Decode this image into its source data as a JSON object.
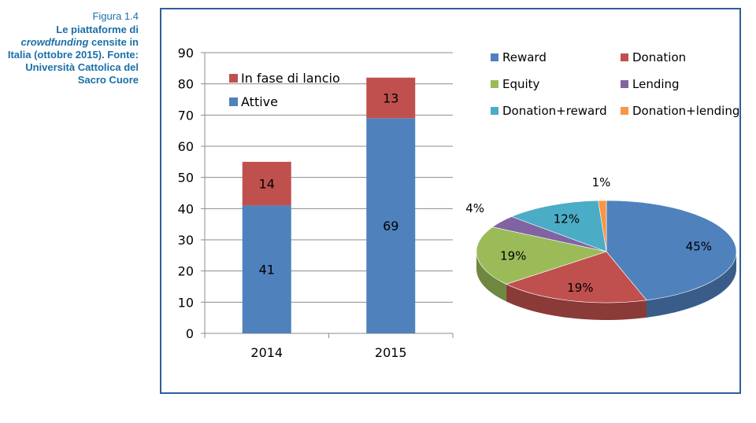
{
  "caption": {
    "figure_label": "Figura 1.4",
    "title_part1": "Le piattaforme di ",
    "title_italic": "crowdfunding",
    "title_part2": " censite in Italia (ottobre 2015). Fonte: Università Cattolica del Sacro Cuore"
  },
  "colors": {
    "blue": "#4f81bd",
    "red": "#c0504d",
    "green": "#9bbb59",
    "purple": "#8064a2",
    "teal": "#4bacc6",
    "orange": "#f79646",
    "caption": "#1a6fa8",
    "frame": "#2e5e9a"
  },
  "chart_data": [
    {
      "type": "bar",
      "stacked": true,
      "categories": [
        "2014",
        "2015"
      ],
      "series": [
        {
          "name": "Attive",
          "values": [
            41,
            69
          ],
          "color": "#4f81bd"
        },
        {
          "name": "In fase di lancio",
          "values": [
            14,
            13
          ],
          "color": "#c0504d"
        }
      ],
      "ylim": [
        0,
        90
      ],
      "yticks": [
        "0",
        "10",
        "20",
        "30",
        "40",
        "50",
        "60",
        "70",
        "80",
        "90"
      ],
      "grid": true,
      "legend": [
        {
          "label": "In fase di lancio",
          "color": "#c0504d"
        },
        {
          "label": "Attive",
          "color": "#4f81bd"
        }
      ],
      "legend_position": "top-left"
    },
    {
      "type": "pie",
      "style": "3d",
      "slices": [
        {
          "name": "Reward",
          "value": 45,
          "label": "45%",
          "color": "#4f81bd"
        },
        {
          "name": "Donation",
          "value": 19,
          "label": "19%",
          "color": "#c0504d"
        },
        {
          "name": "Equity",
          "value": 19,
          "label": "19%",
          "color": "#9bbb59"
        },
        {
          "name": "Lending",
          "value": 4,
          "label": "4%",
          "color": "#8064a2"
        },
        {
          "name": "Donation+reward",
          "value": 12,
          "label": "12%",
          "color": "#4bacc6"
        },
        {
          "name": "Donation+lending",
          "value": 1,
          "label": "1%",
          "color": "#f79646"
        }
      ],
      "legend": [
        {
          "label": "Reward",
          "color": "#4f81bd"
        },
        {
          "label": "Donation",
          "color": "#c0504d"
        },
        {
          "label": "Equity",
          "color": "#9bbb59"
        },
        {
          "label": "Lending",
          "color": "#8064a2"
        },
        {
          "label": "Donation+reward",
          "color": "#4bacc6"
        },
        {
          "label": "Donation+lending",
          "color": "#f79646"
        }
      ],
      "legend_position": "top"
    }
  ]
}
